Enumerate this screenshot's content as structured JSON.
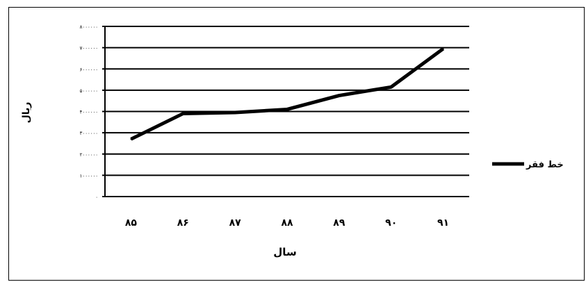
{
  "chart_data": {
    "type": "line",
    "title": "",
    "xlabel": "سال",
    "ylabel": "ریال",
    "categories": [
      "۸۵",
      "۸۶",
      "۸۷",
      "۸۸",
      "۸۹",
      "۹۰",
      "۹۱"
    ],
    "series": [
      {
        "name": "خط فقر",
        "values": [
          2700000,
          3900000,
          3950000,
          4100000,
          4750000,
          5150000,
          6950000
        ]
      }
    ],
    "ylim": [
      0,
      8000000
    ],
    "yticks": [
      0,
      1000000,
      2000000,
      3000000,
      4000000,
      5000000,
      6000000,
      7000000,
      8000000
    ],
    "ytick_labels": [
      "۰",
      "۱۰۰۰۰۰۰",
      "۲۰۰۰۰۰۰",
      "۳۰۰۰۰۰۰",
      "۴۰۰۰۰۰۰",
      "۵۰۰۰۰۰۰",
      "۶۰۰۰۰۰۰",
      "۷۰۰۰۰۰۰",
      "۸۰۰۰۰۰۰"
    ],
    "grid": true,
    "legend_position": "right",
    "colors": {
      "line": "#000000",
      "grid": "#000000",
      "background": "#ffffff"
    }
  }
}
